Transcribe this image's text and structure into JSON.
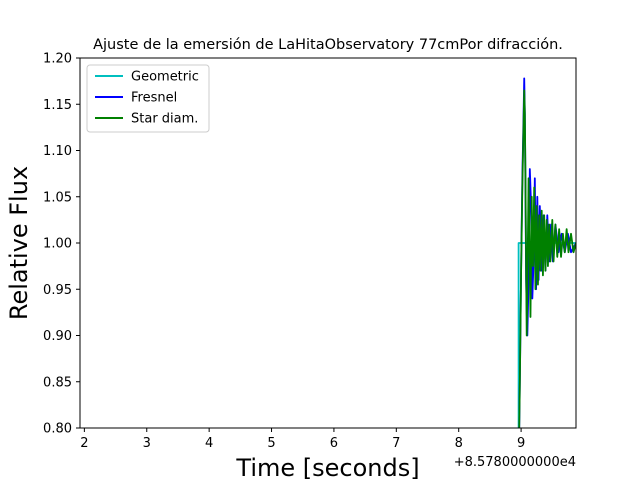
{
  "chart_data": {
    "type": "line",
    "title": "Ajuste de la emersión de LaHitaObservatory 77cmPor difracción.",
    "xlabel": "Time [seconds]",
    "ylabel": "Relative Flux",
    "x_offset_label": "+8.5780000000e4",
    "xlim": [
      1.93,
      9.88
    ],
    "ylim": [
      0.8,
      1.2
    ],
    "x_ticks": [
      "2",
      "3",
      "4",
      "5",
      "6",
      "7",
      "8",
      "9"
    ],
    "y_ticks": [
      "0.80",
      "0.85",
      "0.90",
      "0.95",
      "1.00",
      "1.05",
      "1.10",
      "1.15",
      "1.20"
    ],
    "legend_position": "upper-left",
    "colors": {
      "Geometric": "#00bfbf",
      "Fresnel": "#0000ff",
      "Star diam.": "#008000"
    },
    "series": [
      {
        "name": "Geometric",
        "x": [
          8.96,
          8.96,
          9.88
        ],
        "y": [
          0.8,
          1.0,
          1.0
        ]
      },
      {
        "name": "Fresnel",
        "x": [
          8.97,
          8.98,
          9.0,
          9.02,
          9.04,
          9.05,
          9.06,
          9.07,
          9.08,
          9.1,
          9.12,
          9.14,
          9.16,
          9.18,
          9.2,
          9.22,
          9.24,
          9.26,
          9.28,
          9.3,
          9.33,
          9.36,
          9.39,
          9.42,
          9.45,
          9.48,
          9.51,
          9.55,
          9.6,
          9.65,
          9.7,
          9.75,
          9.8,
          9.88
        ],
        "y": [
          0.8,
          0.85,
          0.97,
          1.07,
          1.14,
          1.178,
          1.14,
          1.06,
          0.96,
          0.9,
          0.96,
          1.08,
          1.04,
          0.94,
          0.98,
          1.07,
          0.95,
          1.05,
          0.96,
          1.04,
          0.97,
          1.03,
          0.97,
          1.03,
          0.98,
          1.02,
          0.98,
          1.02,
          0.99,
          1.01,
          0.99,
          1.01,
          0.99,
          1.0
        ]
      },
      {
        "name": "Star diam.",
        "x": [
          8.97,
          8.98,
          9.0,
          9.02,
          9.04,
          9.05,
          9.06,
          9.07,
          9.08,
          9.09,
          9.1,
          9.12,
          9.13,
          9.15,
          9.17,
          9.18,
          9.19,
          9.21,
          9.23,
          9.25,
          9.27,
          9.29,
          9.31,
          9.33,
          9.35,
          9.37,
          9.39,
          9.41,
          9.43,
          9.45,
          9.47,
          9.5,
          9.52,
          9.55,
          9.58,
          9.61,
          9.64,
          9.67,
          9.7,
          9.73,
          9.76,
          9.8,
          9.84,
          9.88
        ],
        "y": [
          0.8,
          0.85,
          0.97,
          1.06,
          1.13,
          1.165,
          1.14,
          1.07,
          0.98,
          0.9,
          0.95,
          1.07,
          1.02,
          0.92,
          1.05,
          0.99,
          0.975,
          1.06,
          0.95,
          1.04,
          0.955,
          1.03,
          0.97,
          1.035,
          0.965,
          1.03,
          0.97,
          1.025,
          0.975,
          1.02,
          0.98,
          1.025,
          0.98,
          1.02,
          0.985,
          1.015,
          0.985,
          1.01,
          0.99,
          1.015,
          0.99,
          1.01,
          0.99,
          1.0
        ]
      }
    ]
  }
}
